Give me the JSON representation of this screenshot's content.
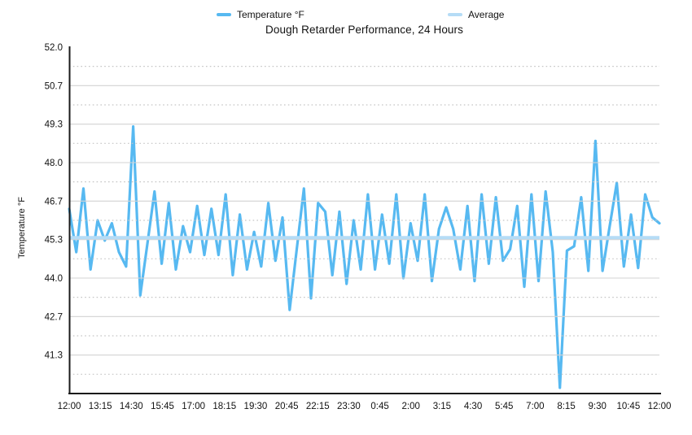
{
  "header": {
    "title": "Dough Retarder Performance, 24 Hours"
  },
  "legend": {
    "items": [
      {
        "label": "Temperature °F",
        "color": "#57B9F1"
      },
      {
        "label": "Average",
        "color": "#B5DCF6"
      }
    ]
  },
  "chart_data": {
    "type": "line",
    "title": "Dough Retarder Performance, 24 Hours",
    "xlabel": "",
    "ylabel": "Temperature °F",
    "ylim": [
      40,
      52
    ],
    "y_tick_labels": [
      "52.0",
      "50.7",
      "49.3",
      "48.0",
      "46.7",
      "45.3",
      "44.0",
      "42.7",
      "41.3"
    ],
    "y_tick_values": [
      52,
      50.667,
      49.333,
      48,
      46.667,
      45.333,
      44,
      42.667,
      41.333
    ],
    "x_tick_labels": [
      "12:00",
      "13:15",
      "14:30",
      "15:45",
      "17:00",
      "18:15",
      "19:30",
      "20:45",
      "22:15",
      "23:30",
      "0:45",
      "2:00",
      "3:15",
      "4:30",
      "5:45",
      "7:00",
      "8:15",
      "9:30",
      "10:45",
      "12:00"
    ],
    "grid": {
      "major": "solid",
      "minor": "dotted",
      "minor_step_offset": 0.667
    },
    "legend_position": "top",
    "series": [
      {
        "name": "Temperature °F",
        "type": "line",
        "color": "#57B9F1",
        "values": [
          46.4,
          44.9,
          47.1,
          44.3,
          46.0,
          45.3,
          45.9,
          44.9,
          44.4,
          49.25,
          43.4,
          45.2,
          47.0,
          44.5,
          46.6,
          44.3,
          45.8,
          44.9,
          46.5,
          44.8,
          46.4,
          44.8,
          46.9,
          44.1,
          46.2,
          44.3,
          45.6,
          44.4,
          46.6,
          44.6,
          46.1,
          42.9,
          45.0,
          47.1,
          43.3,
          46.6,
          46.3,
          44.1,
          46.3,
          43.8,
          46.0,
          44.3,
          46.9,
          44.3,
          46.2,
          44.5,
          46.9,
          44.0,
          45.9,
          44.6,
          46.9,
          43.9,
          45.7,
          46.45,
          45.7,
          44.3,
          46.5,
          43.9,
          46.9,
          44.5,
          46.8,
          44.6,
          45.0,
          46.5,
          43.7,
          46.9,
          43.9,
          47.0,
          44.9,
          40.2,
          44.95,
          45.1,
          46.8,
          44.25,
          48.75,
          44.25,
          45.8,
          47.3,
          44.4,
          46.2,
          44.35,
          46.9,
          46.1,
          45.9
        ]
      },
      {
        "name": "Average",
        "type": "hline",
        "color": "#B5DCF6",
        "value": 45.4
      }
    ]
  },
  "colors": {
    "grid_major": "#d3d3d3",
    "grid_minor": "#c5c5c5",
    "axis": "#1a1a1a",
    "tick_text": "#111111",
    "background": "#ffffff"
  }
}
